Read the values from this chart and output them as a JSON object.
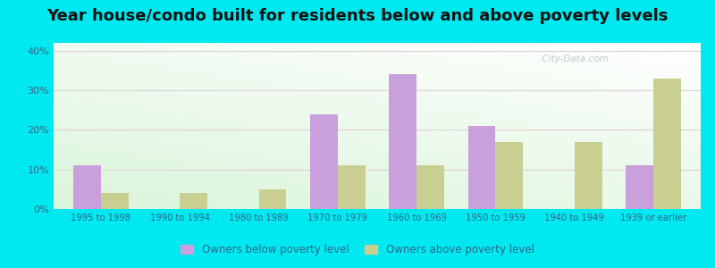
{
  "title": "Year house/condo built for residents below and above poverty levels",
  "categories": [
    "1995 to 1998",
    "1990 to 1994",
    "1980 to 1989",
    "1970 to 1979",
    "1960 to 1969",
    "1950 to 1959",
    "1940 to 1949",
    "1939 or earlier"
  ],
  "below_poverty": [
    11,
    0,
    0,
    24,
    34,
    21,
    0,
    11
  ],
  "above_poverty": [
    4,
    4,
    5,
    11,
    11,
    17,
    17,
    33
  ],
  "below_color": "#c9a0dc",
  "above_color": "#c8cf90",
  "outer_background": "#00e8f0",
  "ylabel_ticks": [
    "0%",
    "10%",
    "20%",
    "30%",
    "40%"
  ],
  "yticks": [
    0,
    10,
    20,
    30,
    40
  ],
  "ylim": [
    0,
    42
  ],
  "legend_below": "Owners below poverty level",
  "legend_above": "Owners above poverty level",
  "title_fontsize": 13,
  "bar_width": 0.35,
  "grid_color": "#e8e8e8",
  "tick_color": "#336688"
}
